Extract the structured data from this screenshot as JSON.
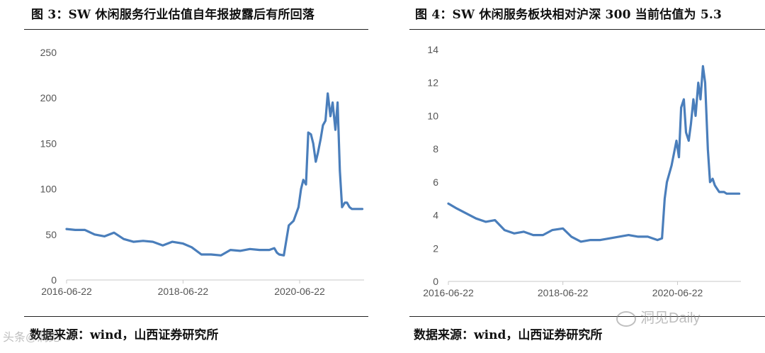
{
  "figures": [
    {
      "title": "图 3：SW 休闲服务行业估值自年报披露后有所回落",
      "source": "数据来源：wind，山西证券研究所"
    },
    {
      "title": "图 4：SW 休闲服务板块相对沪深 300 当前估值为 5.3",
      "source": "数据来源：wind，山西证券研究所"
    }
  ],
  "watermarks": {
    "left": "头条@洞见",
    "right": "洞见Daily"
  },
  "chart_data": [
    {
      "type": "line",
      "title": "",
      "xlabel": "",
      "ylabel": "",
      "line_color": "#4a7ebb",
      "x_ticks": [
        "2016-06-22",
        "2018-06-22",
        "2020-06-22"
      ],
      "y_ticks": [
        0,
        50,
        100,
        150,
        200,
        250
      ],
      "ylim": [
        0,
        250
      ],
      "xlim": [
        "2016-06-22",
        "2021-07-31"
      ],
      "grid": false,
      "legend": "none",
      "series": [
        {
          "x": [
            "2016-06-22",
            "2016-08-15",
            "2016-10-15",
            "2016-12-15",
            "2017-02-15",
            "2017-04-15",
            "2017-06-15",
            "2017-08-15",
            "2017-10-15",
            "2017-12-15",
            "2018-02-15",
            "2018-04-15",
            "2018-06-22",
            "2018-08-15",
            "2018-10-15",
            "2018-12-15",
            "2019-02-15",
            "2019-04-15",
            "2019-06-15",
            "2019-08-15",
            "2019-10-15",
            "2019-12-15",
            "2020-01-15",
            "2020-02-01",
            "2020-02-15",
            "2020-03-15",
            "2020-04-15",
            "2020-05-15",
            "2020-06-15",
            "2020-07-01",
            "2020-07-15",
            "2020-08-01",
            "2020-08-15",
            "2020-09-01",
            "2020-09-15",
            "2020-10-01",
            "2020-10-15",
            "2020-11-01",
            "2020-11-15",
            "2020-12-01",
            "2020-12-15",
            "2021-01-01",
            "2021-01-15",
            "2021-02-01",
            "2021-02-15",
            "2021-03-01",
            "2021-03-15",
            "2021-04-01",
            "2021-04-15",
            "2021-05-01",
            "2021-05-15",
            "2021-06-01",
            "2021-06-15",
            "2021-07-01",
            "2021-07-20"
          ],
          "values": [
            56,
            55,
            55,
            50,
            48,
            52,
            45,
            42,
            43,
            42,
            38,
            42,
            40,
            36,
            28,
            28,
            27,
            33,
            32,
            34,
            33,
            33,
            35,
            30,
            28,
            27,
            60,
            65,
            80,
            100,
            110,
            105,
            162,
            160,
            150,
            130,
            140,
            155,
            170,
            175,
            205,
            180,
            195,
            165,
            195,
            120,
            80,
            85,
            85,
            80,
            78,
            78,
            78,
            78,
            78
          ]
        }
      ]
    },
    {
      "type": "line",
      "title": "",
      "xlabel": "",
      "ylabel": "",
      "line_color": "#4a7ebb",
      "x_ticks": [
        "2016-06-22",
        "2018-06-22",
        "2020-06-22"
      ],
      "y_ticks": [
        0,
        2,
        4,
        6,
        8,
        10,
        12,
        14
      ],
      "ylim": [
        0,
        14
      ],
      "xlim": [
        "2016-06-22",
        "2021-07-31"
      ],
      "grid": false,
      "legend": "none",
      "series": [
        {
          "x": [
            "2016-06-22",
            "2016-08-15",
            "2016-10-15",
            "2016-12-15",
            "2017-02-15",
            "2017-04-15",
            "2017-06-15",
            "2017-08-15",
            "2017-10-15",
            "2017-12-15",
            "2018-02-15",
            "2018-04-15",
            "2018-06-22",
            "2018-08-15",
            "2018-10-15",
            "2018-12-15",
            "2019-02-15",
            "2019-04-15",
            "2019-06-15",
            "2019-08-15",
            "2019-10-15",
            "2019-12-15",
            "2020-01-15",
            "2020-02-15",
            "2020-03-15",
            "2020-04-01",
            "2020-04-15",
            "2020-05-15",
            "2020-06-15",
            "2020-07-01",
            "2020-07-15",
            "2020-08-01",
            "2020-08-15",
            "2020-09-01",
            "2020-09-15",
            "2020-10-01",
            "2020-10-15",
            "2020-11-01",
            "2020-11-15",
            "2020-12-01",
            "2020-12-15",
            "2021-01-01",
            "2021-01-15",
            "2021-02-01",
            "2021-02-15",
            "2021-03-01",
            "2021-03-15",
            "2021-04-01",
            "2021-04-15",
            "2021-05-01",
            "2021-05-15",
            "2021-06-01",
            "2021-06-15",
            "2021-07-01",
            "2021-07-20"
          ],
          "values": [
            4.7,
            4.4,
            4.1,
            3.8,
            3.6,
            3.7,
            3.1,
            2.9,
            3.0,
            2.8,
            2.8,
            3.1,
            3.2,
            2.7,
            2.4,
            2.5,
            2.5,
            2.6,
            2.7,
            2.8,
            2.7,
            2.7,
            2.6,
            2.5,
            2.6,
            5.0,
            6.0,
            7.0,
            8.5,
            7.5,
            10.5,
            11.0,
            9.0,
            8.5,
            9.5,
            11.0,
            10.0,
            12.0,
            11.0,
            13.0,
            12.0,
            8.0,
            6.0,
            6.2,
            5.8,
            5.6,
            5.4,
            5.4,
            5.4,
            5.3,
            5.3,
            5.3,
            5.3,
            5.3,
            5.3
          ]
        }
      ]
    }
  ]
}
